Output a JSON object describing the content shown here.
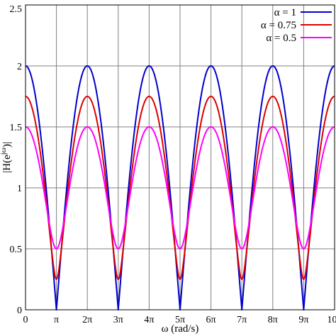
{
  "chart_data": {
    "type": "line",
    "title": "",
    "xlabel": "ω (rad/s)",
    "ylabel": "|H(e^{jω})|",
    "xlim": [
      0,
      31.4159
    ],
    "ylim": [
      0,
      2.5
    ],
    "x_ticks": [
      {
        "value": 0,
        "label": "0"
      },
      {
        "value": 3.14159,
        "label": "π"
      },
      {
        "value": 6.28319,
        "label": "2π"
      },
      {
        "value": 9.42478,
        "label": "3π"
      },
      {
        "value": 12.56637,
        "label": "4π"
      },
      {
        "value": 15.70796,
        "label": "5π"
      },
      {
        "value": 18.84956,
        "label": "6π"
      },
      {
        "value": 21.99115,
        "label": "7π"
      },
      {
        "value": 25.13274,
        "label": "8π"
      },
      {
        "value": 28.27433,
        "label": "9π"
      },
      {
        "value": 31.41593,
        "label": "10π"
      }
    ],
    "y_ticks": [
      {
        "value": 0,
        "label": "0"
      },
      {
        "value": 0.5,
        "label": "0.5"
      },
      {
        "value": 1,
        "label": "1"
      },
      {
        "value": 1.5,
        "label": "1.5"
      },
      {
        "value": 2,
        "label": "2"
      },
      {
        "value": 2.5,
        "label": "2.5"
      }
    ],
    "grid": true,
    "legend_position": "top-right",
    "series": [
      {
        "name": "α = 1",
        "alpha": 1,
        "color": "#0000cc",
        "x": [
          0,
          3.14159,
          6.28319,
          9.42478,
          12.56637,
          15.70796,
          18.84956,
          21.99115,
          25.13274,
          28.27433,
          31.41593
        ],
        "y": [
          2,
          0,
          2,
          0,
          2,
          0,
          2,
          0,
          2,
          0,
          2
        ]
      },
      {
        "name": "α = 0.75",
        "alpha": 0.75,
        "color": "#dd0000",
        "x": [
          0,
          3.14159,
          6.28319,
          9.42478,
          12.56637,
          15.70796,
          18.84956,
          21.99115,
          25.13274,
          28.27433,
          31.41593
        ],
        "y": [
          1.75,
          0.25,
          1.75,
          0.25,
          1.75,
          0.25,
          1.75,
          0.25,
          1.75,
          0.25,
          1.75
        ]
      },
      {
        "name": "α = 0.5",
        "alpha": 0.5,
        "color": "#ff00ff",
        "x": [
          0,
          3.14159,
          6.28319,
          9.42478,
          12.56637,
          15.70796,
          18.84956,
          21.99115,
          25.13274,
          28.27433,
          31.41593
        ],
        "y": [
          1.5,
          0.5,
          1.5,
          0.5,
          1.5,
          0.5,
          1.5,
          0.5,
          1.5,
          0.5,
          1.5
        ]
      }
    ]
  }
}
